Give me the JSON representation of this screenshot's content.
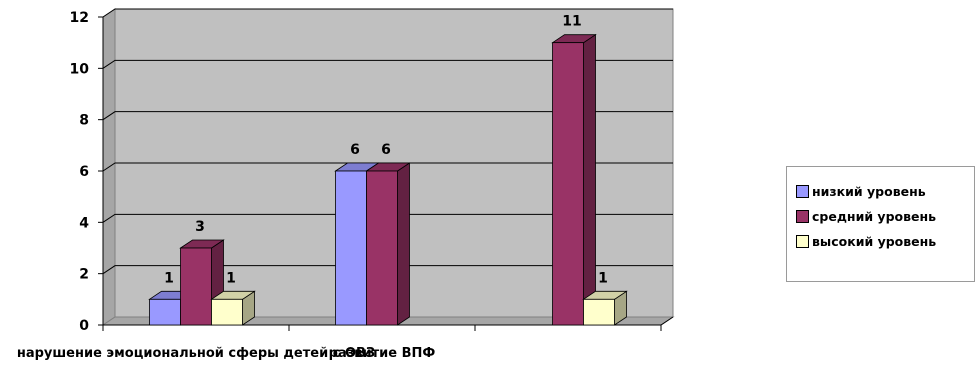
{
  "chart_data": {
    "type": "bar",
    "categories": [
      "нарушение эмоциональной сферы детей с ОВЗ",
      "развитие ВПФ",
      ""
    ],
    "series": [
      {
        "name": "низкий уровень",
        "values": [
          1,
          6,
          null
        ],
        "color": "#9999ff"
      },
      {
        "name": "средний уровень",
        "values": [
          3,
          6,
          11
        ],
        "color": "#993366"
      },
      {
        "name": "высокий уровень",
        "values": [
          1,
          null,
          1
        ],
        "color": "#ffffcc"
      }
    ],
    "ylim": [
      0,
      12
    ],
    "yticks": [
      "0",
      "2",
      "4",
      "6",
      "8",
      "10",
      "12"
    ],
    "grid": true,
    "legend_position": "right",
    "wall_color": "#c0c0c0",
    "title": "",
    "xlabel": "",
    "ylabel": ""
  }
}
